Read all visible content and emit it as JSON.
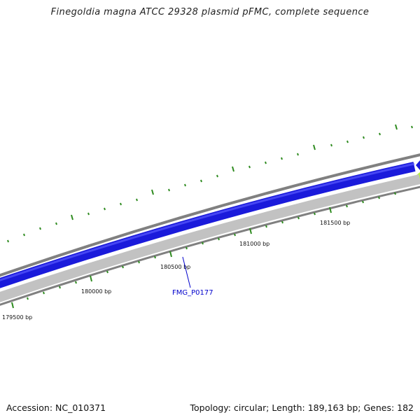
{
  "title": "Finegoldia magna ATCC 29328 plasmid pFMC, complete sequence",
  "footer": {
    "accession": "Accession: NC_010371",
    "summary": "Topology: circular; Length: 189,163 bp; Genes: 182"
  },
  "position_labels": [
    "179500 bp",
    "180000 bp",
    "180500 bp",
    "181000 bp",
    "181500 bp"
  ],
  "gene_label": "FMG_P0177",
  "colors": {
    "forward_gene": "#1a1adb",
    "reverse_gene": "#bdbdbd",
    "backbone": "#777777",
    "tick": "#2e8b1f",
    "gene_label": "#0000cc",
    "adjacent_gene": "#b8f040"
  }
}
